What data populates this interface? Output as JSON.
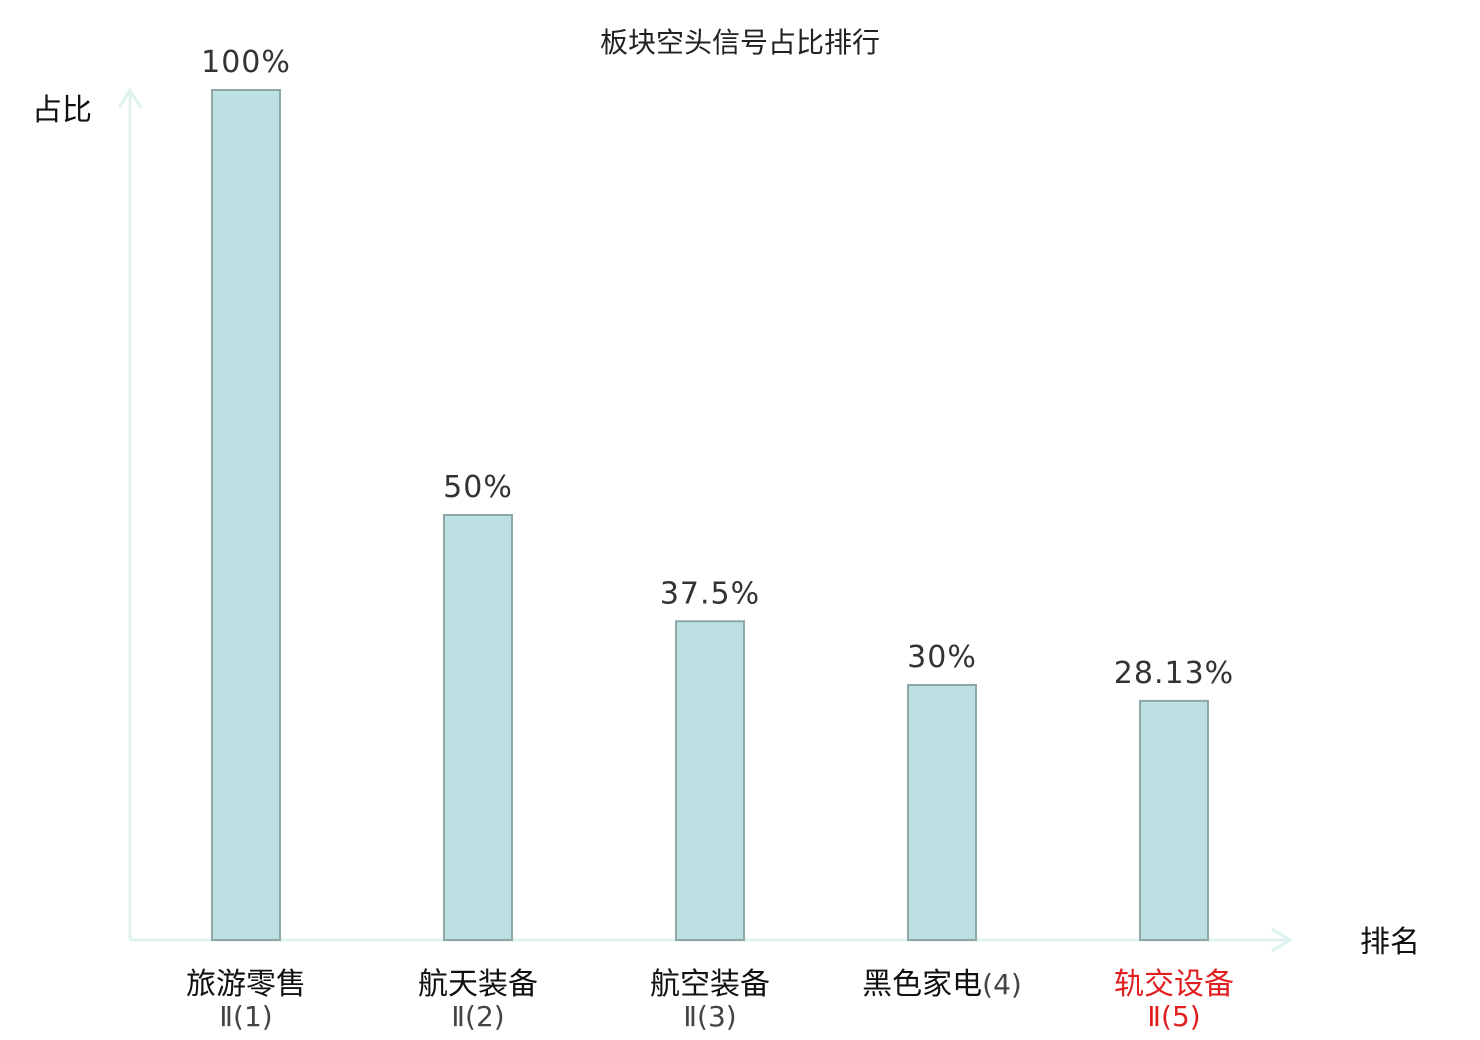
{
  "chart_data": {
    "type": "bar",
    "title": "板块空头信号占比排行",
    "ylabel": "占比",
    "xlabel": "排名",
    "ylim": [
      0,
      100
    ],
    "grid": false,
    "categories": [
      {
        "name": "旅游零售",
        "sub": "Ⅱ(1)",
        "highlight": false
      },
      {
        "name": "航天装备",
        "sub": "Ⅱ(2)",
        "highlight": false
      },
      {
        "name": "航空装备",
        "sub": "Ⅱ(3)",
        "highlight": false
      },
      {
        "name": "黑色家电",
        "sub": "(4)",
        "highlight": false
      },
      {
        "name": "轨交设备",
        "sub": "Ⅱ(5)",
        "highlight": true
      }
    ],
    "values": [
      100,
      50,
      37.5,
      30,
      28.13
    ],
    "value_labels": [
      "100%",
      "50%",
      "37.5%",
      "30%",
      "28.13%"
    ]
  },
  "colors": {
    "bar_fill": "#bde1e3",
    "bar_stroke": "#8ea6a6",
    "axis": "#dff2ef",
    "highlight_text": "#e02020"
  }
}
